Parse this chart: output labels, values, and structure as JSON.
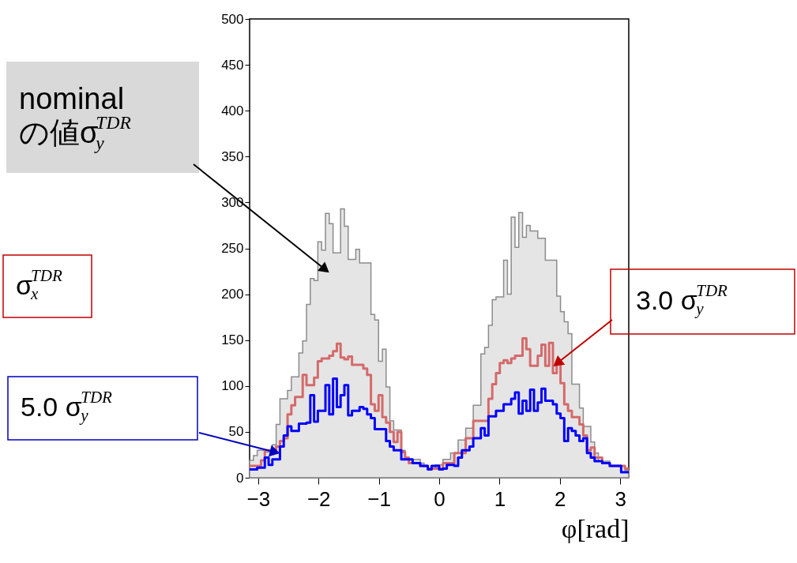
{
  "chart_data": {
    "type": "histogram",
    "xlabel": "φ[rad]",
    "xlim": [
      -3.142,
      3.142
    ],
    "ylim": [
      0,
      500
    ],
    "xticks": [
      {
        "value": -3,
        "label": "−3"
      },
      {
        "value": -2,
        "label": "−2"
      },
      {
        "value": -1,
        "label": "−1"
      },
      0,
      1,
      2,
      3
    ],
    "yticks": [
      0,
      50,
      100,
      150,
      200,
      250,
      300,
      350,
      400,
      450,
      500
    ],
    "bins": [
      -3.142,
      -3.079,
      -3.016,
      -2.953,
      -2.89,
      -2.827,
      -2.765,
      -2.702,
      -2.639,
      -2.576,
      -2.513,
      -2.45,
      -2.388,
      -2.325,
      -2.262,
      -2.199,
      -2.136,
      -2.073,
      -2.011,
      -1.948,
      -1.885,
      -1.822,
      -1.759,
      -1.696,
      -1.634,
      -1.571,
      -1.508,
      -1.445,
      -1.382,
      -1.319,
      -1.257,
      -1.194,
      -1.131,
      -1.068,
      -1.005,
      -0.942,
      -0.88,
      -0.817,
      -0.754,
      -0.691,
      -0.628,
      -0.565,
      -0.503,
      -0.44,
      -0.377,
      -0.314,
      -0.251,
      -0.188,
      -0.126,
      -0.063,
      0,
      0.063,
      0.126,
      0.188,
      0.251,
      0.314,
      0.377,
      0.44,
      0.503,
      0.565,
      0.628,
      0.691,
      0.754,
      0.817,
      0.88,
      0.942,
      1.005,
      1.068,
      1.131,
      1.194,
      1.257,
      1.319,
      1.382,
      1.445,
      1.508,
      1.571,
      1.634,
      1.696,
      1.759,
      1.822,
      1.885,
      1.948,
      2.011,
      2.073,
      2.136,
      2.199,
      2.262,
      2.325,
      2.388,
      2.45,
      2.513,
      2.576,
      2.639,
      2.702,
      2.765,
      2.827,
      2.89,
      2.953,
      3.016,
      3.079,
      3.142
    ],
    "series": [
      {
        "color": "#8c8c8c",
        "values": [
          19,
          24,
          30,
          30,
          28,
          28,
          36,
          58,
          86,
          86,
          95,
          110,
          110,
          136,
          149,
          189,
          217,
          215,
          257,
          248,
          288,
          277,
          245,
          245,
          293,
          274,
          238,
          238,
          249,
          234,
          234,
          234,
          178,
          172,
          127,
          140,
          99,
          62,
          52,
          52,
          30,
          22,
          20,
          20,
          20,
          16,
          12,
          10,
          10,
          14,
          14,
          20,
          20,
          27,
          27,
          41,
          41,
          54,
          54,
          79,
          79,
          135,
          142,
          166,
          194,
          197,
          197,
          237,
          200,
          284,
          251,
          289,
          262,
          275,
          269,
          269,
          261,
          261,
          237,
          237,
          237,
          198,
          181,
          170,
          157,
          102,
          102,
          76,
          56,
          56,
          39,
          27,
          18,
          18,
          18,
          13,
          13,
          13,
          13,
          8
        ]
      },
      {
        "color": "#d46a6a",
        "values": [
          13,
          13,
          13,
          19,
          30,
          30,
          30,
          34,
          40,
          43,
          69,
          79,
          88,
          88,
          112,
          101,
          101,
          109,
          127,
          130,
          130,
          133,
          138,
          146,
          131,
          129,
          132,
          123,
          123,
          123,
          119,
          112,
          80,
          73,
          90,
          66,
          60,
          50,
          39,
          50,
          28,
          22,
          16,
          16,
          16,
          13,
          13,
          10,
          10,
          10,
          10,
          16,
          16,
          16,
          27,
          27,
          27,
          43,
          43,
          62,
          62,
          62,
          62,
          86,
          102,
          114,
          125,
          128,
          125,
          130,
          133,
          133,
          152,
          140,
          122,
          122,
          133,
          145,
          122,
          147,
          114,
          126,
          103,
          80,
          73,
          66,
          66,
          58,
          46,
          30,
          33,
          22,
          22,
          16,
          16,
          13,
          13,
          13,
          13,
          10
        ]
      },
      {
        "color": "#0000ff",
        "values": [
          9,
          9,
          11,
          11,
          22,
          14,
          20,
          20,
          34,
          46,
          56,
          51,
          51,
          59,
          59,
          60,
          90,
          61,
          73,
          73,
          101,
          69,
          108,
          77,
          90,
          101,
          68,
          73,
          73,
          77,
          75,
          69,
          65,
          53,
          53,
          53,
          40,
          34,
          30,
          30,
          20,
          20,
          20,
          16,
          16,
          13,
          13,
          9,
          13,
          13,
          9,
          10,
          14,
          14,
          13,
          22,
          30,
          30,
          34,
          43,
          43,
          54,
          46,
          67,
          67,
          73,
          73,
          80,
          80,
          86,
          93,
          70,
          84,
          73,
          96,
          73,
          82,
          97,
          84,
          84,
          80,
          70,
          65,
          40,
          54,
          51,
          46,
          40,
          43,
          27,
          22,
          18,
          18,
          16,
          16,
          13,
          13,
          13,
          6,
          6
        ]
      }
    ],
    "annotations": [
      "nominal\nの値σ$^{TDR}$$_{y}$",
      {
        "text": "3.0 σ$^{TDR}$$_{y}$",
        "x": 1.98,
        "y": 126
      },
      "5.0 σ$^{TDR}$$_{y}$",
      "σ$^{TDR}$$_{x}$"
    ]
  }
}
